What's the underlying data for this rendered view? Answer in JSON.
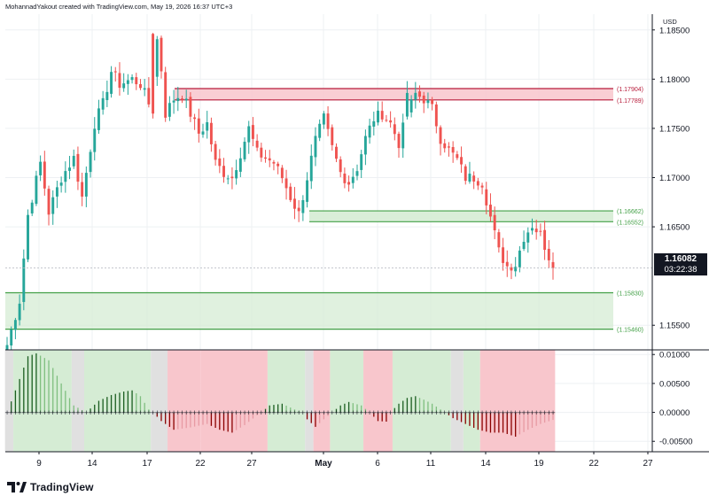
{
  "header": {
    "text": "MohannadYakout created with TradingView.com, May 19, 2026 16:37 UTC+3"
  },
  "branding": {
    "name": "TradingView"
  },
  "currency": "USD",
  "colors": {
    "up": "#26a69a",
    "down": "#ef5350",
    "resistance": "#b71c3b",
    "support": "#43a047",
    "osc_pos": "#1b5e20",
    "osc_neg": "#8b0000",
    "bg_green": "#d5ecd4",
    "bg_red": "#f8c6cc",
    "bg_gray": "#e0e0e0"
  },
  "last_price": {
    "value": "1.16082",
    "countdown": "03:22:38"
  },
  "chart_data": [
    {
      "type": "candlestick",
      "title": "",
      "price_axis": {
        "ticks": [
          "1.18500",
          "1.18000",
          "1.17500",
          "1.17000",
          "1.16500",
          "1.15500"
        ],
        "ylim": [
          1.1525,
          1.1866
        ]
      },
      "time_axis": {
        "labels": [
          "9",
          "14",
          "17",
          "22",
          "27",
          "May",
          "6",
          "11",
          "14",
          "19",
          "22",
          "27"
        ]
      },
      "zones": [
        {
          "name": "resistance-zone",
          "low": 1.17789,
          "high": 1.17904,
          "labels": [
            "(1.17904)",
            "(1.17789)"
          ],
          "kind": "resistance"
        },
        {
          "name": "support-zone-upper",
          "low": 1.16552,
          "high": 1.16662,
          "labels": [
            "(1.16662)",
            "(1.16552)"
          ],
          "kind": "support"
        },
        {
          "name": "support-zone-lower",
          "low": 1.1546,
          "high": 1.1583,
          "labels": [
            "(1.15830)",
            "(1.15460)"
          ],
          "kind": "support"
        }
      ],
      "waypoints": [
        [
          0,
          1.153
        ],
        [
          3,
          1.1575
        ],
        [
          5,
          1.1662
        ],
        [
          8,
          1.1715
        ],
        [
          10,
          1.1665
        ],
        [
          13,
          1.17
        ],
        [
          16,
          1.172
        ],
        [
          18,
          1.168
        ],
        [
          21,
          1.1755
        ],
        [
          23,
          1.1775
        ],
        [
          25,
          1.1808
        ],
        [
          27,
          1.1795
        ],
        [
          30,
          1.18
        ],
        [
          32,
          1.1795
        ],
        [
          34,
          1.1775
        ],
        [
          36,
          1.184
        ],
        [
          37,
          1.181
        ],
        [
          38,
          1.1765
        ],
        [
          40,
          1.178
        ],
        [
          42,
          1.1785
        ],
        [
          44,
          1.1765
        ],
        [
          46,
          1.1745
        ],
        [
          48,
          1.1755
        ],
        [
          50,
          1.1715
        ],
        [
          52,
          1.1705
        ],
        [
          54,
          1.17
        ],
        [
          56,
          1.1725
        ],
        [
          58,
          1.175
        ],
        [
          60,
          1.1725
        ],
        [
          62,
          1.172
        ],
        [
          64,
          1.1715
        ],
        [
          66,
          1.17
        ],
        [
          68,
          1.168
        ],
        [
          70,
          1.1663
        ],
        [
          72,
          1.17
        ],
        [
          74,
          1.1738
        ],
        [
          76,
          1.176
        ],
        [
          78,
          1.173
        ],
        [
          80,
          1.1705
        ],
        [
          82,
          1.1695
        ],
        [
          84,
          1.171
        ],
        [
          86,
          1.174
        ],
        [
          88,
          1.176
        ],
        [
          90,
          1.1765
        ],
        [
          92,
          1.1755
        ],
        [
          94,
          1.1735
        ],
        [
          96,
          1.1765
        ],
        [
          98,
          1.1785
        ],
        [
          100,
          1.178
        ],
        [
          102,
          1.177
        ],
        [
          104,
          1.174
        ],
        [
          106,
          1.1728
        ],
        [
          108,
          1.1718
        ],
        [
          110,
          1.17
        ],
        [
          112,
          1.17
        ],
        [
          114,
          1.1695
        ],
        [
          116,
          1.166
        ],
        [
          118,
          1.1625
        ],
        [
          120,
          1.161
        ],
        [
          122,
          1.1612
        ],
        [
          124,
          1.164
        ],
        [
          126,
          1.1652
        ],
        [
          128,
          1.1642
        ],
        [
          130,
          1.162
        ],
        [
          131,
          1.1608
        ]
      ],
      "candle_count": 132,
      "last_close": 1.16082,
      "direction_flips": [
        [
          35,
          1.1846,
          1.1765,
          1.1847,
          1.176
        ],
        [
          96,
          1.1762,
          1.1786,
          1.1798,
          1.1759
        ]
      ]
    },
    {
      "type": "histogram",
      "title": "",
      "ylim": [
        -0.0068,
        0.0108
      ],
      "ticks": [
        "0.01000",
        "0.00500",
        "0.00000",
        "-0.00500"
      ],
      "anchors": [
        [
          0,
          0.0
        ],
        [
          2,
          0.0038
        ],
        [
          5,
          0.0097
        ],
        [
          7,
          0.0102
        ],
        [
          10,
          0.009
        ],
        [
          13,
          0.005
        ],
        [
          16,
          0.0012
        ],
        [
          19,
          0.0
        ],
        [
          22,
          0.002
        ],
        [
          25,
          0.003
        ],
        [
          28,
          0.0036
        ],
        [
          30,
          0.0038
        ],
        [
          32,
          0.0028
        ],
        [
          34,
          0.0005
        ],
        [
          35,
          0.0
        ],
        [
          37,
          -0.0015
        ],
        [
          40,
          -0.003
        ],
        [
          44,
          -0.0026
        ],
        [
          48,
          -0.002
        ],
        [
          51,
          -0.003
        ],
        [
          54,
          -0.0035
        ],
        [
          57,
          -0.0022
        ],
        [
          60,
          -0.0005
        ],
        [
          61,
          0.0
        ],
        [
          63,
          0.0012
        ],
        [
          66,
          0.0015
        ],
        [
          69,
          0.0005
        ],
        [
          71,
          0.0
        ],
        [
          72,
          -0.0012
        ],
        [
          74,
          -0.0025
        ],
        [
          76,
          -0.0012
        ],
        [
          78,
          0.0
        ],
        [
          80,
          0.0012
        ],
        [
          82,
          0.0018
        ],
        [
          85,
          0.0012
        ],
        [
          87,
          0.0
        ],
        [
          89,
          -0.0015
        ],
        [
          91,
          -0.0016
        ],
        [
          92,
          0.0
        ],
        [
          94,
          0.0015
        ],
        [
          96,
          0.0025
        ],
        [
          98,
          0.0028
        ],
        [
          100,
          0.0022
        ],
        [
          102,
          0.0015
        ],
        [
          104,
          0.0005
        ],
        [
          105,
          0.0
        ],
        [
          107,
          -0.001
        ],
        [
          110,
          -0.002
        ],
        [
          113,
          -0.003
        ],
        [
          116,
          -0.0035
        ],
        [
          119,
          -0.0035
        ],
        [
          122,
          -0.0042
        ],
        [
          125,
          -0.003
        ],
        [
          128,
          -0.002
        ],
        [
          131,
          -0.0013
        ]
      ],
      "background_segments": [
        [
          "gray",
          0,
          1
        ],
        [
          "green",
          2,
          15
        ],
        [
          "gray",
          16,
          18
        ],
        [
          "green",
          19,
          34
        ],
        [
          "gray",
          35,
          38
        ],
        [
          "red",
          39,
          46
        ],
        [
          "red",
          47,
          62
        ],
        [
          "green",
          63,
          71
        ],
        [
          "gray",
          72,
          73
        ],
        [
          "red",
          74,
          77
        ],
        [
          "green",
          78,
          85
        ],
        [
          "red",
          86,
          92
        ],
        [
          "green",
          93,
          106
        ],
        [
          "gray",
          107,
          109
        ],
        [
          "green",
          110,
          113
        ],
        [
          "red",
          114,
          131
        ]
      ]
    }
  ]
}
